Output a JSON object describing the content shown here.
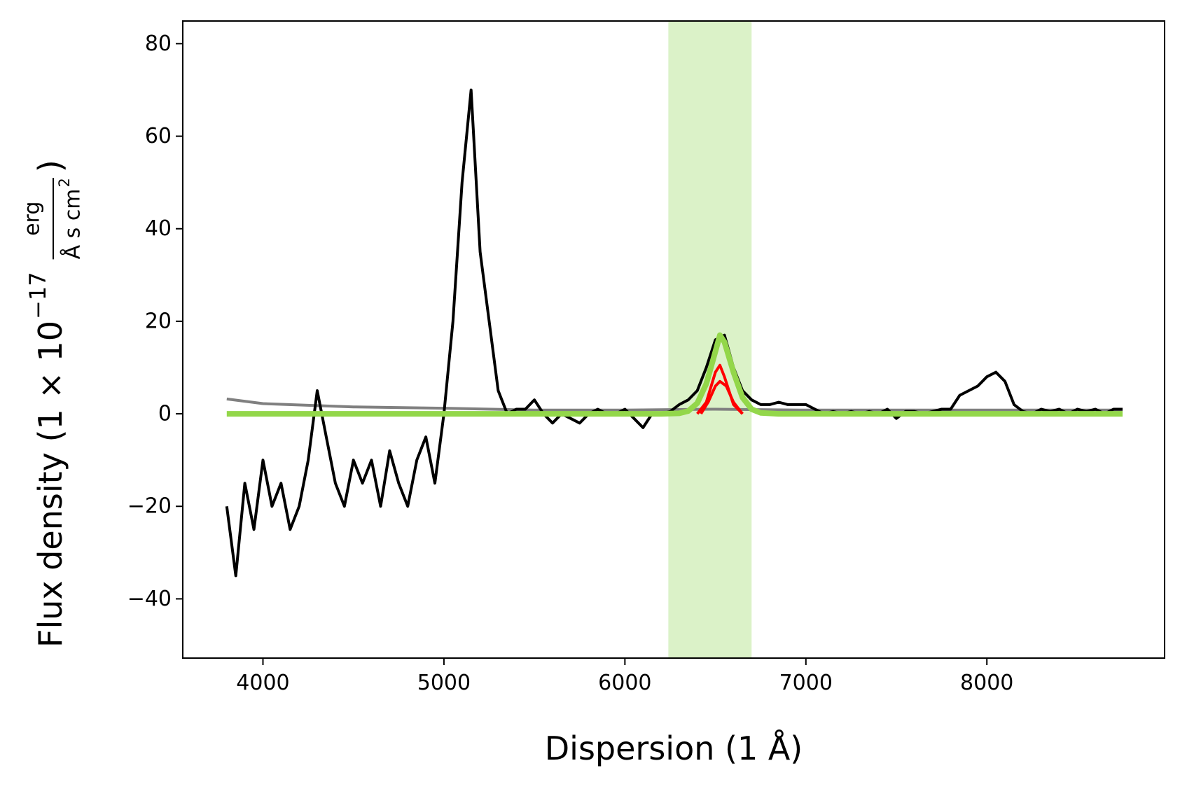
{
  "chart_data": {
    "type": "line",
    "xlabel": "Dispersion (1 Å)",
    "ylabel": {
      "main": "Flux density (1 × 10",
      "exponent": "−17",
      "numerator": "erg",
      "denominator": "Å s cm",
      "denominator_exponent": "2",
      "close": ")"
    },
    "xlim": [
      3557,
      8982
    ],
    "ylim": [
      -52.8,
      84.9
    ],
    "xticks": [
      4000,
      5000,
      6000,
      7000,
      8000
    ],
    "yticks": [
      {
        "value": -40,
        "label": "−40"
      },
      {
        "value": -20,
        "label": "−20"
      },
      0,
      20,
      40,
      60,
      80
    ],
    "span": {
      "x": [
        6240,
        6700
      ],
      "color": "#dbf2c8"
    },
    "series": [
      {
        "color": "#808080",
        "width": 4,
        "x": [
          3800,
          4000,
          4500,
          5000,
          5500,
          6000,
          6500,
          7000,
          7500,
          8000,
          8500,
          8750
        ],
        "values": [
          3.2,
          2.2,
          1.5,
          1.2,
          0.8,
          0.8,
          1,
          0.8,
          0.8,
          0.8,
          0.8,
          0.8
        ]
      },
      {
        "color": "#000000",
        "width": 4,
        "x": [
          3800,
          3850,
          3900,
          3950,
          4000,
          4050,
          4100,
          4150,
          4200,
          4250,
          4300,
          4350,
          4400,
          4450,
          4500,
          4550,
          4600,
          4650,
          4700,
          4750,
          4800,
          4850,
          4900,
          4950,
          5000,
          5050,
          5100,
          5150,
          5200,
          5250,
          5300,
          5350,
          5400,
          5450,
          5500,
          5550,
          5600,
          5650,
          5700,
          5750,
          5800,
          5850,
          5900,
          5950,
          6000,
          6050,
          6100,
          6150,
          6200,
          6250,
          6300,
          6350,
          6400,
          6450,
          6500,
          6550,
          6600,
          6650,
          6700,
          6750,
          6800,
          6850,
          6900,
          6950,
          7000,
          7050,
          7100,
          7150,
          7200,
          7250,
          7300,
          7350,
          7400,
          7450,
          7500,
          7550,
          7600,
          7650,
          7700,
          7750,
          7800,
          7850,
          7900,
          7950,
          8000,
          8050,
          8100,
          8150,
          8200,
          8250,
          8300,
          8350,
          8400,
          8450,
          8500,
          8550,
          8600,
          8650,
          8700,
          8750
        ],
        "values": [
          -20,
          -35,
          -15,
          -25,
          -10,
          -20,
          -15,
          -25,
          -20,
          -10,
          5,
          -5,
          -15,
          -20,
          -10,
          -15,
          -10,
          -20,
          -8,
          -15,
          -20,
          -10,
          -5,
          -15,
          0,
          20,
          50,
          70,
          35,
          20,
          5,
          0,
          1,
          1,
          3,
          0,
          -2,
          0,
          -1,
          -2,
          0,
          1,
          0,
          0,
          1,
          -1,
          -3,
          0,
          0,
          0.5,
          2,
          3,
          5,
          10,
          16,
          17,
          10,
          5,
          3,
          2,
          2,
          2.5,
          2,
          2,
          2,
          1,
          0,
          0.5,
          0,
          0.5,
          0,
          0.5,
          0,
          1,
          -1,
          0.5,
          0.5,
          0,
          0.5,
          1,
          1,
          4,
          5,
          6,
          8,
          9,
          7,
          2,
          0.5,
          0,
          1,
          0.5,
          1,
          0,
          1,
          0.5,
          1,
          0,
          1,
          1
        ]
      },
      {
        "color": "#ff0000",
        "width": 4,
        "x": [
          6400,
          6450,
          6500,
          6525,
          6550,
          6600,
          6650
        ],
        "values": [
          0,
          2.5,
          9,
          10.5,
          8,
          2,
          0
        ]
      },
      {
        "color": "#ff0000",
        "width": 4,
        "x": [
          6420,
          6460,
          6500,
          6525,
          6560,
          6600,
          6650
        ],
        "values": [
          0,
          2.5,
          6,
          7,
          6,
          2.5,
          0
        ]
      },
      {
        "color": "#93d74a",
        "width": 8,
        "x": [
          3800,
          6200,
          6300,
          6350,
          6400,
          6450,
          6500,
          6525,
          6550,
          6600,
          6650,
          6700,
          6750,
          6850,
          8750
        ],
        "values": [
          0,
          0,
          0.1,
          0.6,
          2.3,
          6.5,
          13.5,
          17,
          15.5,
          9,
          3.5,
          1,
          0.2,
          0,
          0
        ]
      }
    ]
  }
}
